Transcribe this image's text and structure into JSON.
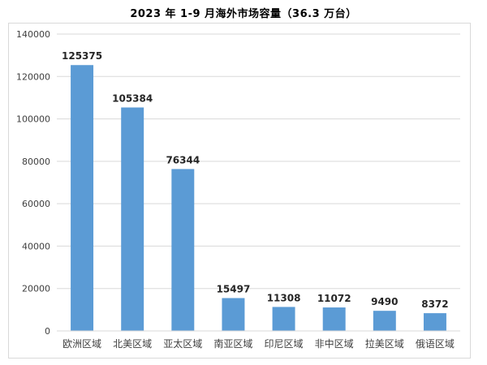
{
  "chart_data": {
    "type": "bar",
    "title": "2023 年 1-9 月海外市场容量（36.3 万台）",
    "categories": [
      "欧洲区域",
      "北美区域",
      "亚太区域",
      "南亚区域",
      "印尼区域",
      "非中区域",
      "拉美区域",
      "俄语区域"
    ],
    "values": [
      125375,
      105384,
      76344,
      15497,
      11308,
      11072,
      9490,
      8372
    ],
    "data_labels": [
      "125375",
      "105384",
      "76344",
      "15497",
      "11308",
      "11072",
      "9490",
      "8372"
    ],
    "y_ticks": [
      "0",
      "20000",
      "40000",
      "60000",
      "80000",
      "100000",
      "120000",
      "140000"
    ],
    "ylim": [
      0,
      140000
    ],
    "grid": true,
    "legend": "none",
    "bar_color": "#5b9bd5",
    "grid_color": "#d9d9d9"
  }
}
